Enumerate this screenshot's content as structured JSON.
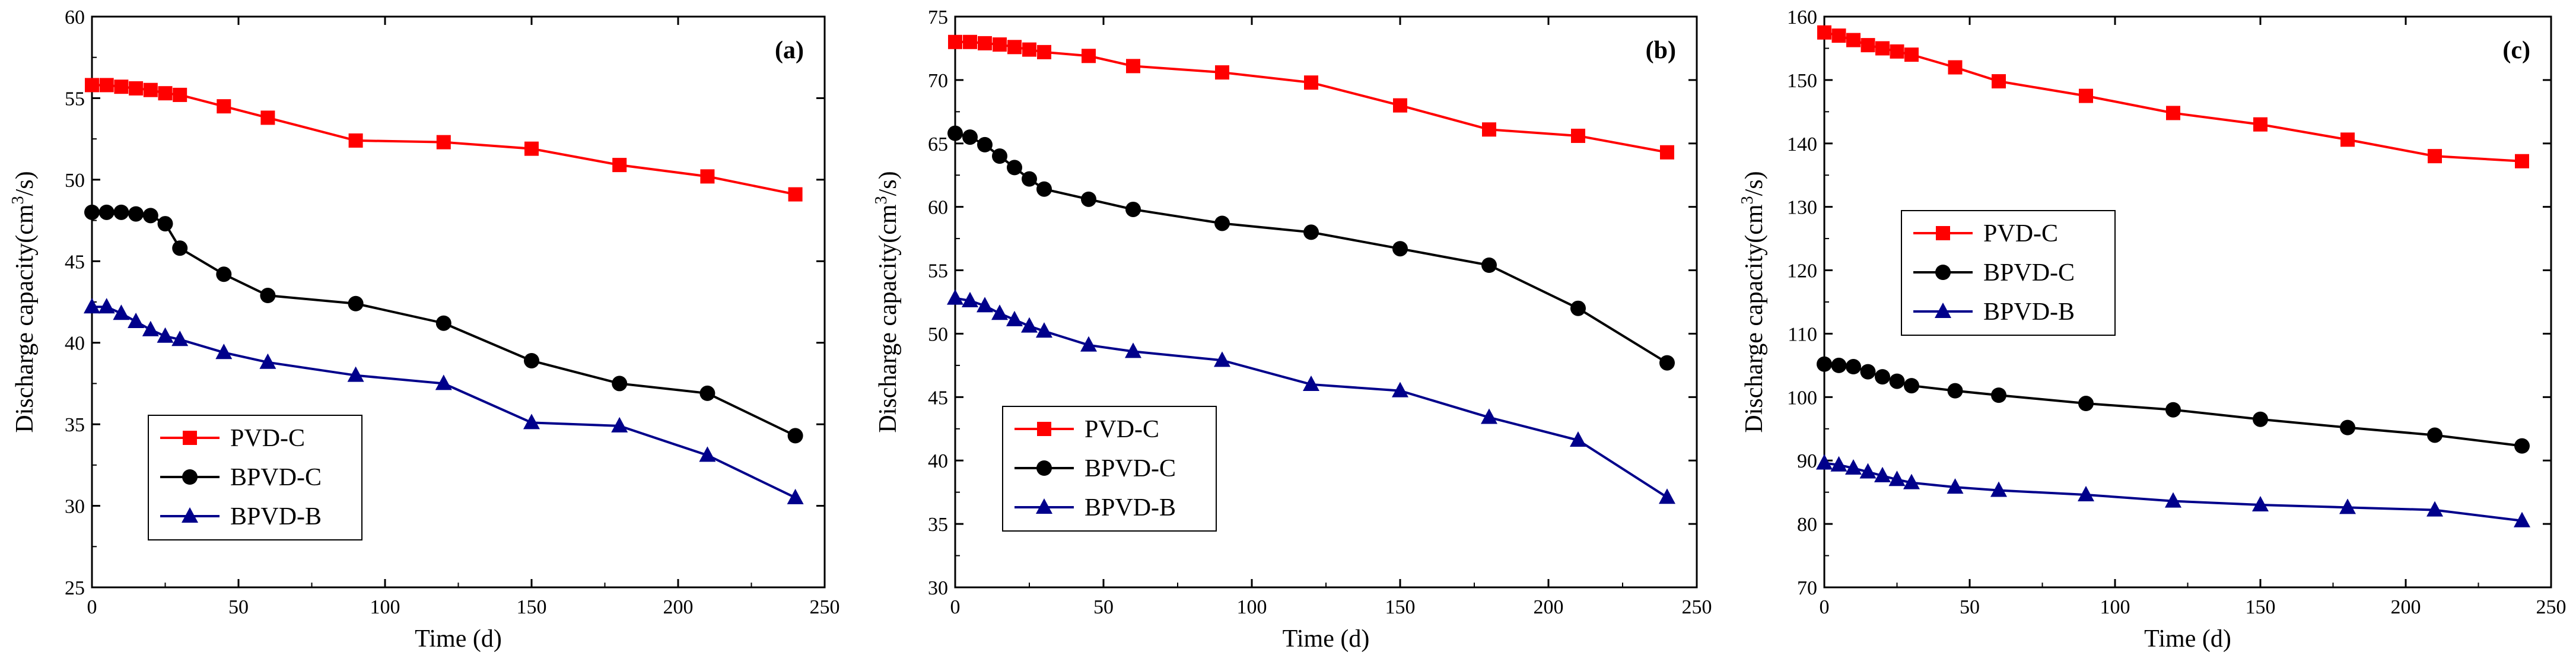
{
  "figure": {
    "series_colors": {
      "PVD-C": "#ff0000",
      "BPVD-C": "#000000",
      "BPVD-B": "#00008b"
    }
  },
  "chart_data": [
    {
      "type": "line",
      "panel_label": "(a)",
      "xlabel": "Time (d)",
      "ylabel_main": "Discharge capacity(cm",
      "ylabel_sup": "3",
      "ylabel_tail": "/s)",
      "xlim": [
        0,
        250
      ],
      "ylim": [
        25,
        60
      ],
      "xticks": [
        0,
        50,
        100,
        150,
        200,
        250
      ],
      "yticks": [
        25,
        30,
        35,
        40,
        45,
        50,
        55,
        60
      ],
      "x": [
        0,
        5,
        10,
        15,
        20,
        25,
        30,
        45,
        60,
        90,
        120,
        150,
        180,
        210,
        240
      ],
      "legend": [
        "PVD-C",
        "BPVD-C",
        "BPVD-B"
      ],
      "series": [
        {
          "name": "PVD-C",
          "color": "#ff0000",
          "marker": "square",
          "values": [
            55.8,
            55.8,
            55.7,
            55.6,
            55.5,
            55.3,
            55.2,
            54.5,
            53.8,
            52.4,
            52.3,
            51.9,
            50.9,
            50.2,
            49.1
          ]
        },
        {
          "name": "BPVD-C",
          "color": "#000000",
          "marker": "circle",
          "values": [
            48.0,
            48.0,
            48.0,
            47.9,
            47.8,
            47.3,
            45.8,
            44.2,
            42.9,
            42.4,
            41.2,
            38.9,
            37.5,
            36.9,
            34.3
          ]
        },
        {
          "name": "BPVD-B",
          "color": "#00008b",
          "marker": "triangle",
          "values": [
            42.2,
            42.2,
            41.8,
            41.3,
            40.8,
            40.4,
            40.2,
            39.4,
            38.8,
            38.0,
            37.5,
            35.1,
            34.9,
            33.1,
            30.5
          ]
        }
      ]
    },
    {
      "type": "line",
      "panel_label": "(b)",
      "xlabel": "Time (d)",
      "ylabel_main": "Discharge capacity(cm",
      "ylabel_sup": "3",
      "ylabel_tail": "/s)",
      "xlim": [
        0,
        250
      ],
      "ylim": [
        30,
        75
      ],
      "xticks": [
        0,
        50,
        100,
        150,
        200,
        250
      ],
      "yticks": [
        30,
        35,
        40,
        45,
        50,
        55,
        60,
        65,
        70,
        75
      ],
      "x": [
        0,
        5,
        10,
        15,
        20,
        25,
        30,
        45,
        60,
        90,
        120,
        150,
        180,
        210,
        240
      ],
      "legend": [
        "PVD-C",
        "BPVD-C",
        "BPVD-B"
      ],
      "series": [
        {
          "name": "PVD-C",
          "color": "#ff0000",
          "marker": "square",
          "values": [
            73.0,
            73.0,
            72.9,
            72.8,
            72.6,
            72.4,
            72.2,
            71.9,
            71.1,
            70.6,
            69.8,
            68.0,
            66.1,
            65.6,
            64.3
          ]
        },
        {
          "name": "BPVD-C",
          "color": "#000000",
          "marker": "circle",
          "values": [
            65.8,
            65.5,
            64.9,
            64.0,
            63.1,
            62.2,
            61.4,
            60.6,
            59.8,
            58.7,
            58.0,
            56.7,
            55.4,
            52.0,
            47.7
          ]
        },
        {
          "name": "BPVD-B",
          "color": "#00008b",
          "marker": "triangle",
          "values": [
            52.8,
            52.6,
            52.2,
            51.6,
            51.1,
            50.6,
            50.2,
            49.1,
            48.6,
            47.9,
            46.0,
            45.5,
            43.4,
            41.6,
            37.1
          ]
        }
      ]
    },
    {
      "type": "line",
      "panel_label": "(c)",
      "xlabel": "Time (d)",
      "ylabel_main": "Discharge capacity(cm",
      "ylabel_sup": "3",
      "ylabel_tail": "/s)",
      "xlim": [
        0,
        250
      ],
      "ylim": [
        70,
        160
      ],
      "xticks": [
        0,
        50,
        100,
        150,
        200,
        250
      ],
      "yticks": [
        70,
        80,
        90,
        100,
        110,
        120,
        130,
        140,
        150,
        160
      ],
      "x": [
        0,
        5,
        10,
        15,
        20,
        25,
        30,
        45,
        60,
        90,
        120,
        150,
        180,
        210,
        240
      ],
      "legend": [
        "PVD-C",
        "BPVD-C",
        "BPVD-B"
      ],
      "series": [
        {
          "name": "PVD-C",
          "color": "#ff0000",
          "marker": "square",
          "values": [
            157.5,
            157.0,
            156.3,
            155.5,
            155.0,
            154.5,
            154.0,
            152.0,
            149.8,
            147.5,
            144.8,
            143.0,
            140.6,
            138.0,
            137.2
          ]
        },
        {
          "name": "BPVD-C",
          "color": "#000000",
          "marker": "circle",
          "values": [
            105.2,
            105.0,
            104.8,
            104.0,
            103.2,
            102.5,
            101.8,
            101.0,
            100.3,
            99.0,
            98.0,
            96.5,
            95.2,
            94.0,
            92.3
          ]
        },
        {
          "name": "BPVD-B",
          "color": "#00008b",
          "marker": "triangle",
          "values": [
            89.6,
            89.3,
            88.8,
            88.2,
            87.6,
            87.0,
            86.5,
            85.8,
            85.3,
            84.6,
            83.6,
            83.0,
            82.6,
            82.2,
            80.5
          ]
        }
      ]
    }
  ]
}
